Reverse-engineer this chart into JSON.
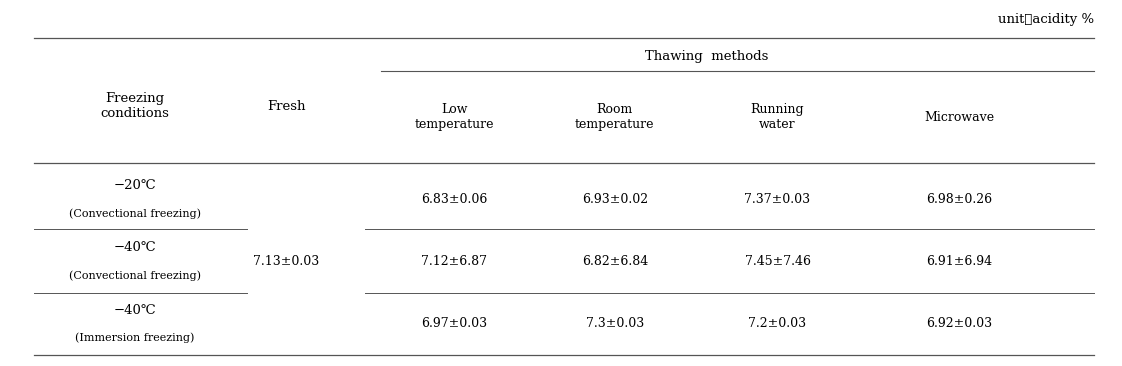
{
  "unit_label": "unit：acidity %",
  "thawing_label": "Thawing  methods",
  "fresh_label": "Fresh",
  "freezing_label": "Freezing\nconditions",
  "col_subheaders": [
    "Low\ntemperature",
    "Room\ntemperature",
    "Running\nwater",
    "Microwave"
  ],
  "rows": [
    {
      "cond_line1": "−20℃",
      "cond_line2": "(Convectional freezing)",
      "fresh": "",
      "values": [
        "6.83±0.06",
        "6.93±0.02",
        "7.37±0.03",
        "6.98±0.26"
      ]
    },
    {
      "cond_line1": "−40℃",
      "cond_line2": "(Convectional freezing)",
      "fresh": "7.13±0.03",
      "values": [
        "7.12±6.87",
        "6.82±6.84",
        "7.45±7.46",
        "6.91±6.94"
      ]
    },
    {
      "cond_line1": "−40℃",
      "cond_line2": "(Immersion freezing)",
      "fresh": "",
      "values": [
        "6.97±0.03",
        "7.3±0.03",
        "7.2±0.03",
        "6.92±0.03"
      ]
    }
  ],
  "bg_color": "#ffffff",
  "text_color": "#000000",
  "line_color": "#555555",
  "fs_unit": 9.5,
  "fs_header": 9.5,
  "fs_subheader": 9.0,
  "fs_data": 9.0,
  "fs_cond_main": 9.5,
  "fs_cond_sub": 8.0
}
